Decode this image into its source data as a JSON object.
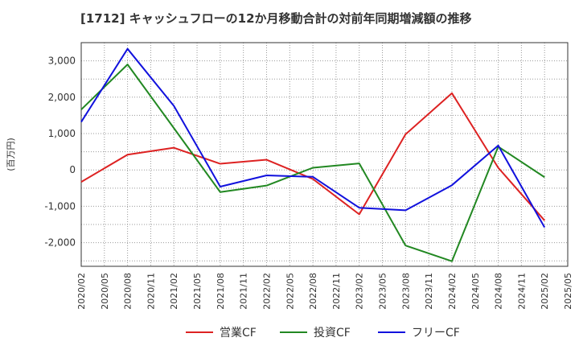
{
  "chart_data": {
    "type": "line",
    "title": "[1712]  キャッシュフローの12か月移動合計の対前年同期増減額の推移",
    "xlabel": "",
    "ylabel": "(百万円)",
    "ylim": [
      -2650,
      3500
    ],
    "yticks": [
      3000,
      2000,
      1000,
      0,
      -1000,
      -2000
    ],
    "ytick_labels": [
      "3,000",
      "2,000",
      "1,000",
      "0",
      "-1,000",
      "-2,000"
    ],
    "x": [
      "2020/02",
      "2020/05",
      "2020/08",
      "2020/11",
      "2021/02",
      "2021/05",
      "2021/08",
      "2021/11",
      "2022/02",
      "2022/05",
      "2022/08",
      "2022/11",
      "2023/02",
      "2023/05",
      "2023/08",
      "2023/11",
      "2024/02",
      "2024/05",
      "2024/08",
      "2024/11",
      "2025/02",
      "2025/05"
    ],
    "grid": true,
    "legend_position": "bottom",
    "series": [
      {
        "name": "営業CF",
        "color": "#dd2222",
        "points": [
          [
            "2020/02",
            -330
          ],
          [
            "2020/08",
            420
          ],
          [
            "2021/02",
            610
          ],
          [
            "2021/08",
            170
          ],
          [
            "2022/02",
            280
          ],
          [
            "2022/08",
            -250
          ],
          [
            "2023/02",
            -1220
          ],
          [
            "2023/08",
            980
          ],
          [
            "2024/02",
            2110
          ],
          [
            "2024/08",
            60
          ],
          [
            "2025/02",
            -1390
          ]
        ]
      },
      {
        "name": "投資CF",
        "color": "#228822",
        "points": [
          [
            "2020/02",
            1660
          ],
          [
            "2020/08",
            2900
          ],
          [
            "2021/02",
            1150
          ],
          [
            "2021/08",
            -610
          ],
          [
            "2022/02",
            -430
          ],
          [
            "2022/08",
            60
          ],
          [
            "2023/02",
            180
          ],
          [
            "2023/08",
            -2080
          ],
          [
            "2024/02",
            -2510
          ],
          [
            "2024/08",
            640
          ],
          [
            "2025/02",
            -200
          ]
        ]
      },
      {
        "name": "フリーCF",
        "color": "#1111dd",
        "points": [
          [
            "2020/02",
            1320
          ],
          [
            "2020/08",
            3330
          ],
          [
            "2021/02",
            1760
          ],
          [
            "2021/08",
            -460
          ],
          [
            "2022/02",
            -150
          ],
          [
            "2022/08",
            -190
          ],
          [
            "2023/02",
            -1040
          ],
          [
            "2023/08",
            -1110
          ],
          [
            "2024/02",
            -420
          ],
          [
            "2024/08",
            670
          ],
          [
            "2025/02",
            -1580
          ]
        ]
      }
    ]
  }
}
